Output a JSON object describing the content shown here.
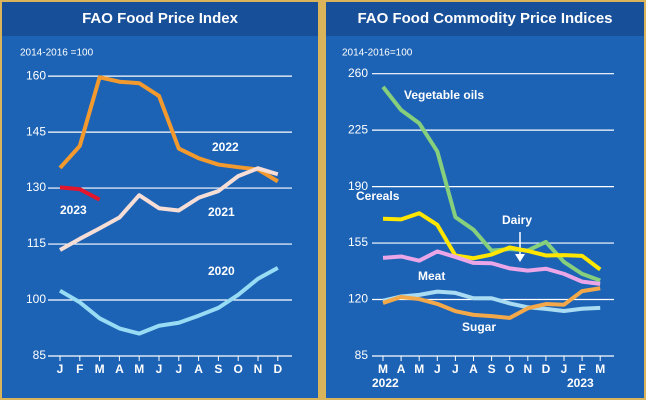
{
  "chart_data": [
    {
      "type": "line",
      "title": "FAO Food Price Index",
      "ylabel": "2014-2016 =100",
      "categories": [
        "J",
        "F",
        "M",
        "A",
        "M",
        "J",
        "J",
        "A",
        "S",
        "O",
        "N",
        "D"
      ],
      "ylim": [
        85,
        167
      ],
      "yticks": [
        85,
        100,
        115,
        130,
        145,
        160
      ],
      "grid": true,
      "series": [
        {
          "name": "2022",
          "color": "#f39a2e",
          "values": [
            135.4,
            141.3,
            159.7,
            158.5,
            158.1,
            154.7,
            140.6,
            138.0,
            136.3,
            135.6,
            135.0,
            131.8
          ]
        },
        {
          "name": "2023",
          "color": "#e3162b",
          "values": [
            130.2,
            129.7,
            126.9,
            null,
            null,
            null,
            null,
            null,
            null,
            null,
            null,
            null
          ]
        },
        {
          "name": "2021",
          "color": "#f6ddd6",
          "values": [
            113.4,
            116.4,
            119.2,
            122.1,
            128.1,
            124.6,
            124.0,
            127.4,
            129.2,
            133.2,
            135.3,
            133.7
          ]
        },
        {
          "name": "2020",
          "color": "#97dcf4",
          "values": [
            102.5,
            99.4,
            95.1,
            92.4,
            91.0,
            93.1,
            93.9,
            95.8,
            97.9,
            101.4,
            105.7,
            108.6
          ]
        }
      ]
    },
    {
      "type": "line",
      "title": "FAO Food Commodity Price Indices",
      "ylabel": "2014-2016=100",
      "categories": [
        "M",
        "A",
        "M",
        "J",
        "J",
        "A",
        "S",
        "O",
        "N",
        "D",
        "J",
        "F",
        "M"
      ],
      "year_labels": [
        "2022",
        "2023"
      ],
      "ylim": [
        85,
        266
      ],
      "yticks": [
        85,
        120,
        155,
        190,
        225,
        260
      ],
      "grid": true,
      "series": [
        {
          "name": "Vegetable oils",
          "color": "#86cf7c",
          "values": [
            251.8,
            237.5,
            229.3,
            211.8,
            171.1,
            163.3,
            150.3,
            151.3,
            150.4,
            155.7,
            143.3,
            135.9,
            131.8
          ]
        },
        {
          "name": "Cereals",
          "color": "#ffe600",
          "values": [
            170.1,
            169.7,
            173.5,
            166.3,
            147.3,
            145.6,
            147.9,
            152.3,
            150.1,
            147.3,
            147.5,
            147.1,
            138.6
          ]
        },
        {
          "name": "Dairy",
          "color": "#eaa6e6",
          "values": [
            145.8,
            146.7,
            144.1,
            149.8,
            146.4,
            142.7,
            142.5,
            139.3,
            137.9,
            139.1,
            135.9,
            131.1,
            129.7
          ]
        },
        {
          "name": "Meat",
          "color": "#a9dcf3",
          "values": [
            119.3,
            121.9,
            122.9,
            124.9,
            124.1,
            120.8,
            120.8,
            117.6,
            115.2,
            114.2,
            112.9,
            114.3,
            114.8
          ]
        },
        {
          "name": "Sugar",
          "color": "#f3a84a",
          "values": [
            117.9,
            121.6,
            120.3,
            117.3,
            112.8,
            110.5,
            109.7,
            108.6,
            114.6,
            117.2,
            116.8,
            125.2,
            127.0
          ]
        }
      ]
    }
  ]
}
